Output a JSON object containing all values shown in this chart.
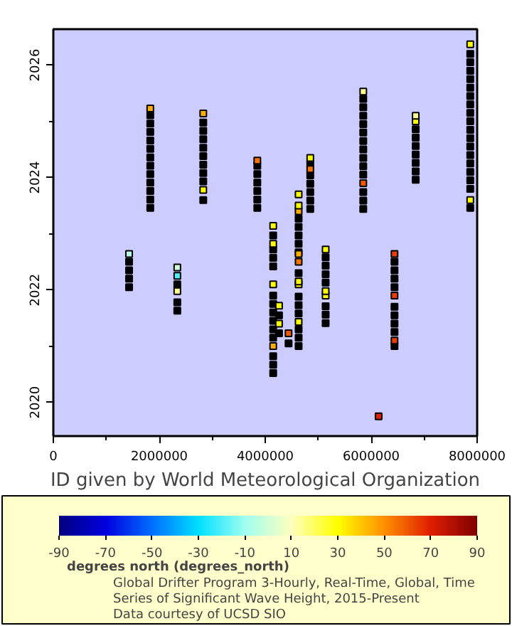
{
  "chart_data": {
    "type": "scatter",
    "xlabel": "ID given by World Meteorological Organization",
    "clabel": "degrees north (degrees_north)",
    "annotations": [
      "Global Drifter Program 3-Hourly, Real-Time, Global, Time",
      "Series of Significant Wave Height, 2015-Present",
      "Data courtesy of UCSD SIO"
    ],
    "marker": "square",
    "xlim": [
      0,
      8000000
    ],
    "ylim": [
      2019.4,
      2026.64
    ],
    "xticks": [
      0,
      2000000,
      4000000,
      6000000,
      8000000
    ],
    "yticks": [
      2020,
      2022,
      2024,
      2026
    ],
    "clim": [
      -90,
      90
    ],
    "cticks": [
      -90,
      -70,
      -50,
      -30,
      -10,
      10,
      30,
      50,
      70,
      90
    ],
    "series": [
      {
        "color": "#000000",
        "x": [
          1830000,
          1830000,
          1830000,
          1830000,
          1830000,
          1830000,
          1830000,
          1830000,
          1830000,
          1830000,
          1830000,
          1830000,
          1830000
        ],
        "values": [
          2023.46,
          2023.61,
          2023.76,
          2023.91,
          2024.06,
          2024.21,
          2024.36,
          2024.51,
          2024.66,
          2024.81,
          2024.96,
          2025.11,
          2025.23
        ],
        "cvalues": [
          null,
          null,
          null,
          null,
          null,
          null,
          null,
          null,
          null,
          null,
          null,
          null,
          45
        ]
      },
      {
        "color": "#000000",
        "x": [
          2830000,
          2830000,
          2830000,
          2830000,
          2830000,
          2830000,
          2830000,
          2830000,
          2830000,
          2830000,
          2830000
        ],
        "values": [
          2023.6,
          2023.78,
          2023.93,
          2024.08,
          2024.23,
          2024.38,
          2024.53,
          2024.68,
          2024.83,
          2024.98,
          2025.14
        ],
        "cvalues": [
          null,
          30,
          null,
          null,
          null,
          null,
          null,
          null,
          null,
          null,
          45
        ]
      },
      {
        "color": "#000000",
        "x": [
          3850000,
          3850000,
          3850000,
          3850000,
          3850000,
          3850000,
          3850000
        ],
        "values": [
          2023.46,
          2023.61,
          2023.76,
          2023.91,
          2024.06,
          2024.21,
          2024.3
        ],
        "cvalues": [
          null,
          null,
          null,
          null,
          null,
          null,
          55
        ]
      },
      {
        "color": "#000000",
        "x": [
          4850000,
          4850000,
          4850000,
          4850000,
          4850000,
          4850000,
          4850000,
          4850000
        ],
        "values": [
          2023.44,
          2023.59,
          2023.74,
          2023.89,
          2024.04,
          2024.15,
          2024.25,
          2024.35
        ],
        "cvalues": [
          null,
          null,
          null,
          null,
          null,
          55,
          null,
          30
        ]
      },
      {
        "color": "#000000",
        "x": [
          5850000,
          5850000,
          5850000,
          5850000,
          5850000,
          5850000,
          5850000,
          5850000,
          5850000,
          5850000,
          5850000,
          5850000,
          5850000,
          5850000,
          5850000
        ],
        "values": [
          2023.44,
          2023.59,
          2023.74,
          2023.9,
          2024.05,
          2024.2,
          2024.35,
          2024.5,
          2024.65,
          2024.8,
          2024.95,
          2025.1,
          2025.25,
          2025.4,
          2025.53
        ],
        "cvalues": [
          null,
          null,
          null,
          60,
          null,
          null,
          null,
          null,
          null,
          null,
          null,
          null,
          null,
          null,
          15
        ]
      },
      {
        "color": "#000000",
        "x": [
          6840000,
          6840000,
          6840000,
          6840000,
          6840000,
          6840000,
          6840000,
          6840000,
          6840000
        ],
        "values": [
          2023.96,
          2024.11,
          2024.26,
          2024.41,
          2024.56,
          2024.71,
          2024.86,
          2025.0,
          2025.1
        ],
        "cvalues": [
          null,
          null,
          null,
          null,
          null,
          null,
          null,
          30,
          15
        ]
      },
      {
        "color": "#000000",
        "x": [
          7870000,
          7870000,
          7870000,
          7870000,
          7870000,
          7870000,
          7870000,
          7870000,
          7870000,
          7870000,
          7870000,
          7870000,
          7870000,
          7870000,
          7870000,
          7870000,
          7870000,
          7870000,
          7870000,
          7870000
        ],
        "values": [
          2023.46,
          2023.6,
          2023.8,
          2023.95,
          2024.1,
          2024.25,
          2024.4,
          2024.55,
          2024.7,
          2024.85,
          2025.0,
          2025.15,
          2025.3,
          2025.45,
          2025.6,
          2025.75,
          2025.9,
          2026.05,
          2026.2,
          2026.37
        ],
        "cvalues": [
          null,
          30,
          null,
          null,
          null,
          null,
          null,
          null,
          null,
          null,
          null,
          null,
          null,
          null,
          null,
          null,
          null,
          null,
          null,
          30
        ]
      },
      {
        "color": "#000000",
        "x": [
          4150000,
          4150000,
          4150000,
          4150000,
          4150000,
          4150000
        ],
        "values": [
          2022.42,
          2022.57,
          2022.72,
          2022.82,
          2022.97,
          2023.14
        ],
        "cvalues": [
          null,
          null,
          null,
          30,
          null,
          30
        ]
      },
      {
        "color": "#000000",
        "x": [
          4630000,
          4630000,
          4630000,
          4630000,
          4630000,
          4630000,
          4630000,
          4630000
        ],
        "values": [
          2022.67,
          2022.82,
          2022.97,
          2023.12,
          2023.27,
          2023.4,
          2023.5,
          2023.7
        ],
        "cvalues": [
          null,
          null,
          null,
          null,
          null,
          45,
          30,
          30
        ]
      },
      {
        "color": "#000000",
        "x": [
          1430000,
          1430000,
          1430000,
          1430000,
          1430000
        ],
        "values": [
          2022.05,
          2022.2,
          2022.35,
          2022.5,
          2022.64
        ],
        "cvalues": [
          null,
          null,
          null,
          null,
          -5
        ]
      },
      {
        "color": "#000000",
        "x": [
          2340000,
          2340000,
          2340000,
          2340000,
          2340000,
          2340000
        ],
        "values": [
          2021.63,
          2021.78,
          2021.98,
          2022.1,
          2022.25,
          2022.4
        ],
        "cvalues": [
          null,
          null,
          15,
          null,
          -20,
          0
        ]
      },
      {
        "color": "#000000",
        "x": [
          4150000,
          4150000,
          4150000,
          4150000,
          4150000,
          4150000,
          4150000,
          4150000,
          4150000,
          4150000,
          4150000
        ],
        "values": [
          2020.52,
          2020.67,
          2020.82,
          2021.0,
          2021.15,
          2021.3,
          2021.45,
          2021.6,
          2021.75,
          2021.9,
          2022.1
        ],
        "cvalues": [
          null,
          null,
          null,
          45,
          null,
          null,
          null,
          null,
          null,
          null,
          30
        ]
      },
      {
        "color": "#000000",
        "x": [
          4260000,
          4260000,
          4260000,
          4260000
        ],
        "values": [
          2021.23,
          2021.4,
          2021.55,
          2021.72
        ],
        "cvalues": [
          null,
          30,
          null,
          30
        ]
      },
      {
        "color": "#000000",
        "x": [
          4440000,
          4440000
        ],
        "values": [
          2021.05,
          2021.23
        ],
        "cvalues": [
          null,
          60
        ]
      },
      {
        "color": "#000000",
        "x": [
          4630000,
          4630000,
          4630000,
          4630000,
          4630000,
          4630000,
          4630000,
          4630000,
          4630000,
          4630000,
          4630000,
          4630000
        ],
        "values": [
          2021.0,
          2021.15,
          2021.3,
          2021.43,
          2021.58,
          2021.73,
          2021.88,
          2022.1,
          2022.15,
          2022.3,
          2022.5,
          2022.64
        ],
        "cvalues": [
          null,
          null,
          null,
          30,
          null,
          null,
          null,
          30,
          30,
          null,
          55,
          45
        ]
      },
      {
        "color": "#000000",
        "x": [
          5140000,
          5140000,
          5140000,
          5140000,
          5140000,
          5140000,
          5140000,
          5140000,
          5140000,
          5140000
        ],
        "values": [
          2021.41,
          2021.56,
          2021.71,
          2021.9,
          2021.98,
          2022.13,
          2022.28,
          2022.43,
          2022.58,
          2022.72
        ],
        "cvalues": [
          null,
          null,
          null,
          30,
          30,
          null,
          null,
          null,
          null,
          30
        ]
      },
      {
        "color": "#000000",
        "x": [
          6440000,
          6440000,
          6440000,
          6440000,
          6440000,
          6440000,
          6440000,
          6440000,
          6440000,
          6440000,
          6440000,
          6440000
        ],
        "values": [
          2021.0,
          2021.1,
          2021.25,
          2021.4,
          2021.55,
          2021.7,
          2021.9,
          2022.05,
          2022.2,
          2022.35,
          2022.5,
          2022.64
        ],
        "cvalues": [
          null,
          65,
          null,
          null,
          null,
          null,
          65,
          null,
          null,
          null,
          null,
          65
        ]
      },
      {
        "x": [
          6140000
        ],
        "values": [
          2019.75
        ],
        "cvalues": [
          70
        ]
      }
    ]
  }
}
